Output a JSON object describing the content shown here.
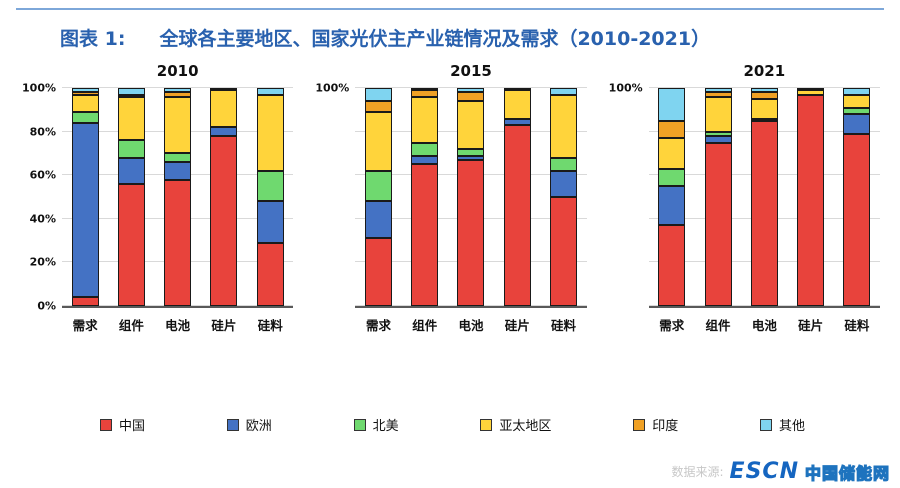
{
  "page": {
    "figure_label": "图表 1:",
    "title": "全球各主要地区、国家光伏主产业链情况及需求（2010-2021）",
    "accent_color": "#2961ae"
  },
  "legend": {
    "position": "bottom",
    "items": [
      {
        "label": "中国",
        "color": "#e8433c"
      },
      {
        "label": "欧洲",
        "color": "#4472c4"
      },
      {
        "label": "北美",
        "color": "#6fd96f"
      },
      {
        "label": "亚太地区",
        "color": "#ffd43b"
      },
      {
        "label": "印度",
        "color": "#f0a125"
      },
      {
        "label": "其他",
        "color": "#7fd4f0"
      }
    ]
  },
  "chart_data": {
    "type": "bar",
    "stacked": true,
    "unit": "%",
    "grid": true,
    "ylim": [
      0,
      100
    ],
    "y_ticks": [
      "0%",
      "20%",
      "40%",
      "60%",
      "80%",
      "100%"
    ],
    "categories": [
      "需求",
      "组件",
      "电池",
      "硅片",
      "硅料"
    ],
    "series_names": [
      "中国",
      "欧洲",
      "北美",
      "亚太地区",
      "印度",
      "其他"
    ],
    "series_colors": {
      "中国": "#e8433c",
      "欧洲": "#4472c4",
      "北美": "#6fd96f",
      "亚太地区": "#ffd43b",
      "印度": "#f0a125",
      "其他": "#7fd4f0"
    },
    "charts": [
      {
        "title": "2010",
        "y_tick_labels": [
          "0%",
          "20%",
          "40%",
          "60%",
          "80%",
          "100%"
        ],
        "series": [
          {
            "name": "中国",
            "values": [
              4,
              56,
              58,
              78,
              29
            ]
          },
          {
            "name": "欧洲",
            "values": [
              80,
              12,
              8,
              4,
              19
            ]
          },
          {
            "name": "北美",
            "values": [
              5,
              8,
              4,
              0,
              14
            ]
          },
          {
            "name": "亚太地区",
            "values": [
              8,
              20,
              26,
              17,
              35
            ]
          },
          {
            "name": "印度",
            "values": [
              1,
              1,
              2,
              0,
              0
            ]
          },
          {
            "name": "其他",
            "values": [
              2,
              3,
              2,
              1,
              3
            ]
          }
        ]
      },
      {
        "title": "2015",
        "y_tick_labels": [
          "100%"
        ],
        "series": [
          {
            "name": "中国",
            "values": [
              31,
              65,
              67,
              83,
              50
            ]
          },
          {
            "name": "欧洲",
            "values": [
              17,
              4,
              2,
              3,
              12
            ]
          },
          {
            "name": "北美",
            "values": [
              14,
              6,
              3,
              0,
              6
            ]
          },
          {
            "name": "亚太地区",
            "values": [
              27,
              21,
              22,
              13,
              29
            ]
          },
          {
            "name": "印度",
            "values": [
              5,
              3,
              4,
              0,
              0
            ]
          },
          {
            "name": "其他",
            "values": [
              6,
              1,
              2,
              1,
              3
            ]
          }
        ]
      },
      {
        "title": "2021",
        "y_tick_labels": [
          "100%"
        ],
        "series": [
          {
            "name": "中国",
            "values": [
              37,
              75,
              85,
              97,
              79
            ]
          },
          {
            "name": "欧洲",
            "values": [
              18,
              3,
              0,
              0,
              9
            ]
          },
          {
            "name": "北美",
            "values": [
              8,
              2,
              1,
              0,
              3
            ]
          },
          {
            "name": "亚太地区",
            "values": [
              14,
              16,
              9,
              2,
              6
            ]
          },
          {
            "name": "印度",
            "values": [
              8,
              2,
              3,
              0,
              0
            ]
          },
          {
            "name": "其他",
            "values": [
              15,
              2,
              2,
              1,
              3
            ]
          }
        ]
      }
    ]
  },
  "footer": {
    "source_text": "数据来源:",
    "logo_escn": "ESCN",
    "logo_cn": "中国储能网"
  }
}
